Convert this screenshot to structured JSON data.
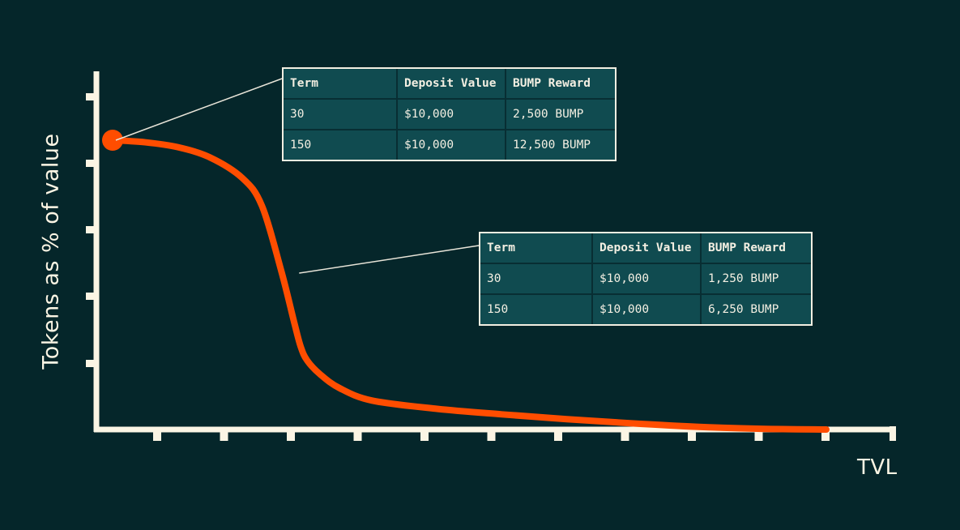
{
  "chart_data": {
    "type": "line",
    "title": "",
    "xlabel": "TVL",
    "ylabel": "Tokens as % of value",
    "x_tick_count": 11,
    "y_tick_count": 5,
    "x": [
      0,
      0.5,
      1,
      1.5,
      2,
      2.3,
      2.6,
      2.8,
      2.9,
      3.0,
      3.2,
      3.5,
      4,
      5,
      6,
      7,
      8,
      9,
      10,
      11
    ],
    "y": [
      4.2,
      4.17,
      4.1,
      3.95,
      3.65,
      3.25,
      2.3,
      1.55,
      1.2,
      1.0,
      0.8,
      0.6,
      0.42,
      0.3,
      0.22,
      0.15,
      0.09,
      0.04,
      0.01,
      0.0
    ],
    "highlight_point": {
      "x": 0,
      "y": 4.2
    },
    "xlim": [
      -0.25,
      11.5
    ],
    "ylim": [
      0,
      5.2
    ],
    "grid": false,
    "series_color": "#ff4d00",
    "axis_color": "#fbf5e4",
    "background": "#05262a"
  },
  "callouts": [
    {
      "anchor": {
        "x": 0,
        "y": 4.2
      },
      "headers": [
        "Term",
        "Deposit Value",
        "BUMP Reward"
      ],
      "rows": [
        [
          "30",
          "$10,000",
          "2,500 BUMP"
        ],
        [
          "150",
          "$10,000",
          "12,500 BUMP"
        ]
      ]
    },
    {
      "anchor": {
        "x": 2.85,
        "y": 2.27
      },
      "headers": [
        "Term",
        "Deposit Value",
        "BUMP Reward"
      ],
      "rows": [
        [
          "30",
          "$10,000",
          "1,250 BUMP"
        ],
        [
          "150",
          "$10,000",
          "6,250 BUMP"
        ]
      ]
    }
  ]
}
